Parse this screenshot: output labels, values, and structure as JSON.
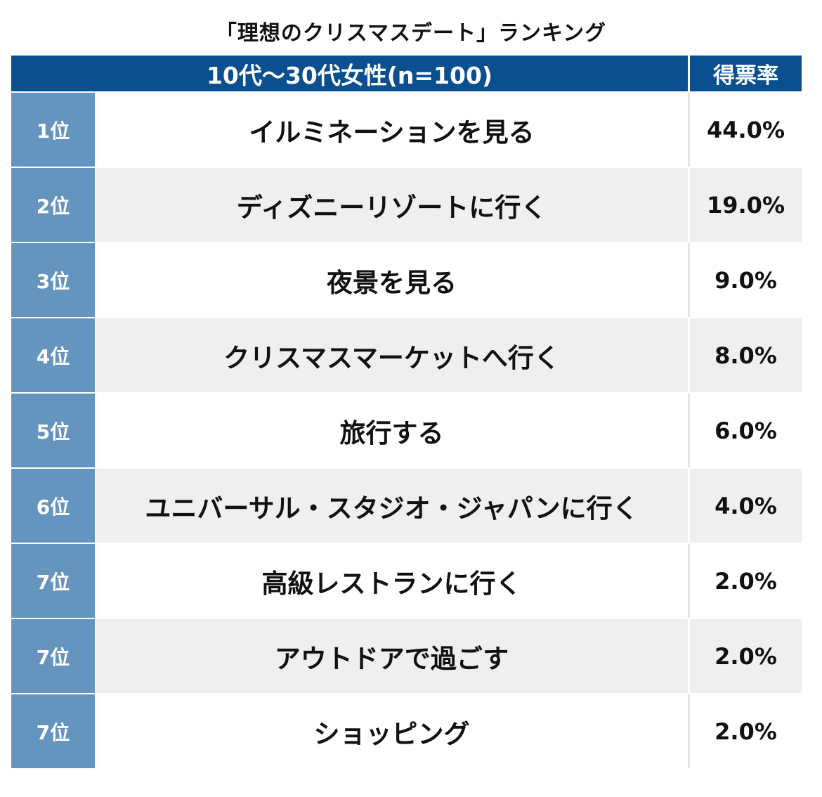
{
  "title": "「理想のクリスマスデート」ランキング",
  "header": {
    "group": "10代〜30代女性(n=100)",
    "value_col": "得票率"
  },
  "colors": {
    "header_bg": "#0a4f8f",
    "rank_bg": "#6595bf",
    "row_alt_bg": "#efefef"
  },
  "chart_data": {
    "type": "table",
    "title": "「理想のクリスマスデート」ランキング",
    "columns": [
      "10代〜30代女性(n=100)",
      "得票率"
    ],
    "rows": [
      {
        "rank": "1位",
        "label": "イルミネーションを見る",
        "value": "44.0%"
      },
      {
        "rank": "2位",
        "label": "ディズニーリゾートに行く",
        "value": "19.0%"
      },
      {
        "rank": "3位",
        "label": "夜景を見る",
        "value": "9.0%"
      },
      {
        "rank": "4位",
        "label": "クリスマスマーケットへ行く",
        "value": "8.0%"
      },
      {
        "rank": "5位",
        "label": "旅行する",
        "value": "6.0%"
      },
      {
        "rank": "6位",
        "label": "ユニバーサル・スタジオ・ジャパンに行く",
        "value": "4.0%"
      },
      {
        "rank": "7位",
        "label": "高級レストランに行く",
        "value": "2.0%"
      },
      {
        "rank": "7位",
        "label": "アウトドアで過ごす",
        "value": "2.0%"
      },
      {
        "rank": "7位",
        "label": "ショッピング",
        "value": "2.0%"
      }
    ]
  }
}
